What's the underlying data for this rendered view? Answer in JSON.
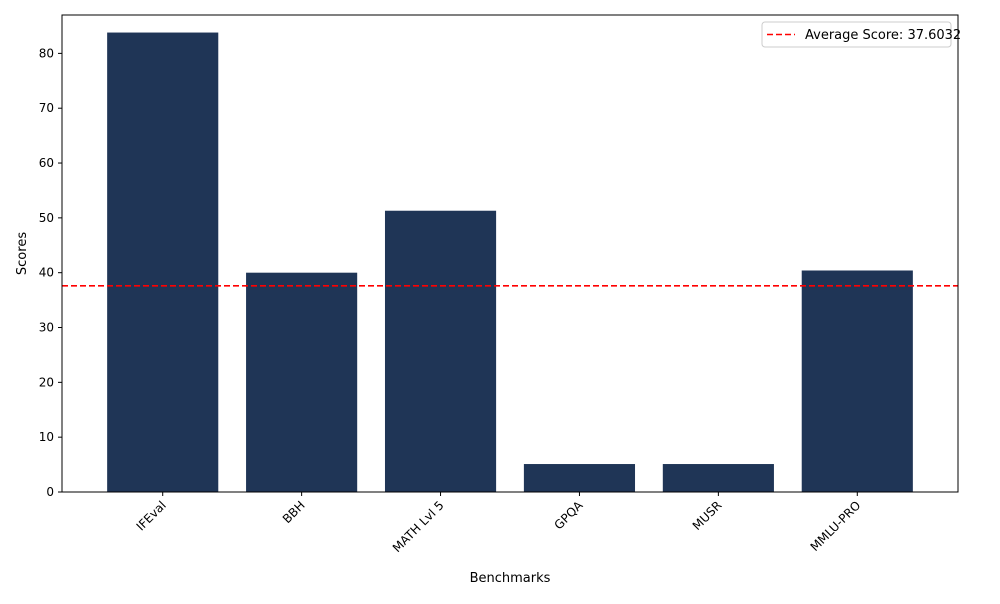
{
  "chart_data": {
    "type": "bar",
    "categories": [
      "IFEval",
      "BBH",
      "MATH Lvl 5",
      "GPQA",
      "MUSR",
      "MMLU-PRO"
    ],
    "values": [
      83.8,
      40.0,
      51.3,
      5.1,
      5.1,
      40.4
    ],
    "xlabel": "Benchmarks",
    "ylabel": "Scores",
    "ylim": [
      0,
      87
    ],
    "yticks": [
      0,
      10,
      20,
      30,
      40,
      50,
      60,
      70,
      80
    ],
    "xtick_rotation": 45,
    "bar_color": "#1f3556",
    "grid": false,
    "reference_line": {
      "value": 37.6032,
      "label": "Average Score: 37.6032",
      "color": "#ff0000",
      "style": "dashed"
    },
    "legend": {
      "placement": "top-right",
      "entries": [
        "Average Score: 37.6032"
      ]
    }
  }
}
